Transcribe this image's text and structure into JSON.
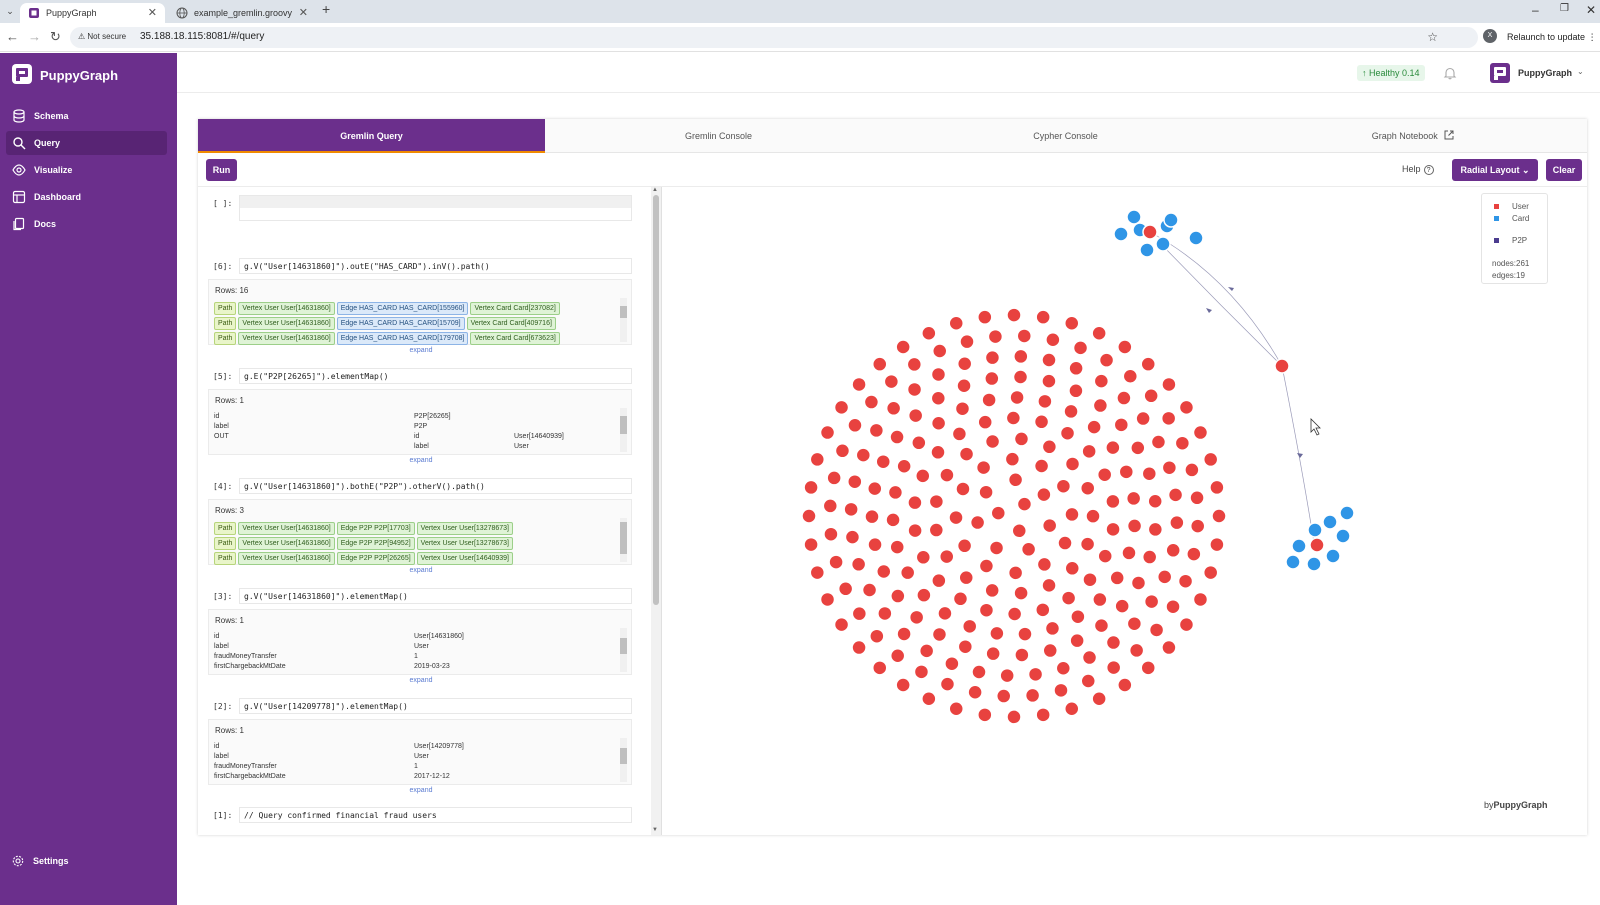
{
  "browser": {
    "tabs": [
      {
        "title": "PuppyGraph",
        "active": true
      },
      {
        "title": "example_gremlin.groovy",
        "active": false
      }
    ],
    "not_secure": "Not secure",
    "url": "35.188.18.115:8081/#/query",
    "avatar_letter": "X",
    "relaunch": "Relaunch to update"
  },
  "sidebar": {
    "brand": "PuppyGraph",
    "items": [
      {
        "label": "Schema",
        "icon": "database-icon"
      },
      {
        "label": "Query",
        "icon": "search-icon",
        "active": true
      },
      {
        "label": "Visualize",
        "icon": "eye-icon"
      },
      {
        "label": "Dashboard",
        "icon": "dashboard-icon"
      },
      {
        "label": "Docs",
        "icon": "docs-icon"
      }
    ],
    "settings": "Settings"
  },
  "header": {
    "health": "Healthy 0.14",
    "user": "PuppyGraph"
  },
  "query_tabs": [
    "Gremlin Query",
    "Gremlin Console",
    "Cypher Console",
    "Graph Notebook"
  ],
  "toolbar": {
    "run": "Run",
    "help": "Help",
    "layout": "Radial Layout",
    "clear": "Clear"
  },
  "cells": [
    {
      "prompt": "[ ]:",
      "code": ""
    },
    {
      "prompt": "[6]:",
      "code": "g.V(\"User[14631860]\").outE(\"HAS_CARD\").inV().path()",
      "rows": "Rows: 16",
      "paths": [
        [
          "Path",
          "Vertex User User[14631860]",
          "Edge HAS_CARD HAS_CARD[155960]",
          "Vertex Card Card[237082]"
        ],
        [
          "Path",
          "Vertex User User[14631860]",
          "Edge HAS_CARD HAS_CARD[15709]",
          "Vertex Card Card[409716]"
        ],
        [
          "Path",
          "Vertex User User[14631860]",
          "Edge HAS_CARD HAS_CARD[179708]",
          "Vertex Card Card[673623]"
        ]
      ],
      "expand": "expand"
    },
    {
      "prompt": "[5]:",
      "code": "g.E(\"P2P[26265]\").elementMap()",
      "rows": "Rows: 1",
      "kv": [
        {
          "k": "id",
          "v": "P2P[26265]"
        },
        {
          "k": "label",
          "v": "P2P"
        },
        {
          "k": "OUT",
          "k2": "id",
          "v2": "User[14640939]"
        },
        {
          "k": "",
          "k2": "label",
          "v2": "User"
        }
      ],
      "expand": "expand"
    },
    {
      "prompt": "[4]:",
      "code": "g.V(\"User[14631860]\").bothE(\"P2P\").otherV().path()",
      "rows": "Rows: 3",
      "paths": [
        [
          "Path",
          "Vertex User User[14631860]",
          "Edge P2P P2P[17703]",
          "Vertex User User[13278673]"
        ],
        [
          "Path",
          "Vertex User User[14631860]",
          "Edge P2P P2P[94952]",
          "Vertex User User[13278673]"
        ],
        [
          "Path",
          "Vertex User User[14631860]",
          "Edge P2P P2P[26265]",
          "Vertex User User[14640939]"
        ]
      ],
      "expand": "expand"
    },
    {
      "prompt": "[3]:",
      "code": "g.V(\"User[14631860]\").elementMap()",
      "rows": "Rows: 1",
      "kv": [
        {
          "k": "id",
          "v": "User[14631860]"
        },
        {
          "k": "label",
          "v": "User"
        },
        {
          "k": "fraudMoneyTransfer",
          "v": "1"
        },
        {
          "k": "firstChargebackMtDate",
          "v": "2019-03-23"
        }
      ],
      "expand": "expand"
    },
    {
      "prompt": "[2]:",
      "code": "g.V(\"User[14209778]\").elementMap()",
      "rows": "Rows: 1",
      "kv": [
        {
          "k": "id",
          "v": "User[14209778]"
        },
        {
          "k": "label",
          "v": "User"
        },
        {
          "k": "fraudMoneyTransfer",
          "v": "1"
        },
        {
          "k": "firstChargebackMtDate",
          "v": "2017-12-12"
        }
      ],
      "expand": "expand"
    },
    {
      "prompt": "[1]:",
      "code": "// Query confirmed financial fraud users"
    }
  ],
  "graph": {
    "legend": [
      {
        "label": "User",
        "color": "#e8423f"
      },
      {
        "label": "Card",
        "color": "#2f95e6"
      },
      {
        "label": "P2P",
        "color": "#4b3c8f"
      }
    ],
    "nodes": "nodes:261",
    "edges": "edges:19",
    "byline_prefix": "by",
    "byline_brand": "PuppyGraph",
    "user_color": "#e8423f",
    "card_color": "#2f95e6"
  }
}
